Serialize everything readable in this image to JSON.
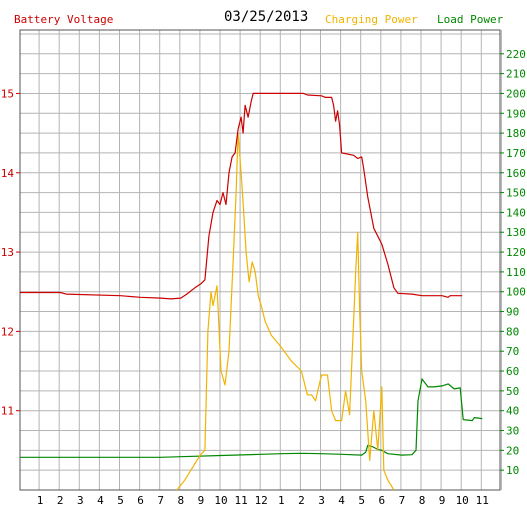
{
  "header": {
    "left_title": "Battery Voltage",
    "date": "03/25/2013",
    "charging_label": "Charging Power",
    "load_label": "Load Power"
  },
  "colors": {
    "voltage": "#cc0000",
    "charging": "#f0b400",
    "load": "#008800",
    "grid": "#b4b4b4",
    "frame": "#555555"
  },
  "chart_data": {
    "type": "line",
    "title": "03/25/2013",
    "grid": true,
    "x_range": [
      0,
      23
    ],
    "x_ticks": [
      {
        "label": "1",
        "x": 1
      },
      {
        "label": "2",
        "x": 2
      },
      {
        "label": "3",
        "x": 3
      },
      {
        "label": "4",
        "x": 4
      },
      {
        "label": "5",
        "x": 5
      },
      {
        "label": "6",
        "x": 6
      },
      {
        "label": "7",
        "x": 7
      },
      {
        "label": "8",
        "x": 8
      },
      {
        "label": "9",
        "x": 9
      },
      {
        "label": "10",
        "x": 10
      },
      {
        "label": "11",
        "x": 11
      },
      {
        "label": "12",
        "x": 12
      },
      {
        "label": "1",
        "x": 13
      },
      {
        "label": "2",
        "x": 14
      },
      {
        "label": "3",
        "x": 15
      },
      {
        "label": "4",
        "x": 16
      },
      {
        "label": "5",
        "x": 17
      },
      {
        "label": "6",
        "x": 18
      },
      {
        "label": "7",
        "x": 19
      },
      {
        "label": "8",
        "x": 20
      },
      {
        "label": "9",
        "x": 21
      },
      {
        "label": "10",
        "x": 22
      },
      {
        "label": "11",
        "x": 23
      }
    ],
    "y_left": {
      "label": "Battery Voltage",
      "range": [
        10,
        15.8
      ],
      "ticks": [
        11,
        12,
        13,
        14,
        15
      ]
    },
    "y_right": {
      "label": "Power",
      "range": [
        0,
        232
      ],
      "ticks": [
        10,
        20,
        30,
        40,
        50,
        60,
        70,
        80,
        90,
        100,
        110,
        120,
        130,
        140,
        150,
        160,
        170,
        180,
        190,
        200,
        210,
        220
      ]
    },
    "series": [
      {
        "name": "Battery Voltage",
        "axis": "left",
        "points": [
          [
            0,
            12.49
          ],
          [
            2.0,
            12.49
          ],
          [
            2.3,
            12.47
          ],
          [
            5.0,
            12.45
          ],
          [
            6.0,
            12.43
          ],
          [
            7.0,
            12.42
          ],
          [
            7.5,
            12.41
          ],
          [
            8.0,
            12.42
          ],
          [
            8.3,
            12.47
          ],
          [
            8.7,
            12.55
          ],
          [
            9.0,
            12.6
          ],
          [
            9.2,
            12.65
          ],
          [
            9.4,
            13.2
          ],
          [
            9.6,
            13.5
          ],
          [
            9.8,
            13.65
          ],
          [
            9.95,
            13.6
          ],
          [
            10.1,
            13.75
          ],
          [
            10.25,
            13.6
          ],
          [
            10.4,
            14.0
          ],
          [
            10.55,
            14.2
          ],
          [
            10.7,
            14.25
          ],
          [
            10.85,
            14.55
          ],
          [
            11.0,
            14.7
          ],
          [
            11.1,
            14.5
          ],
          [
            11.2,
            14.85
          ],
          [
            11.35,
            14.7
          ],
          [
            11.5,
            14.9
          ],
          [
            11.6,
            15.0
          ],
          [
            12.5,
            15.0
          ],
          [
            14.1,
            15.0
          ],
          [
            14.3,
            14.98
          ],
          [
            15.0,
            14.97
          ],
          [
            15.2,
            14.95
          ],
          [
            15.5,
            14.95
          ],
          [
            15.6,
            14.85
          ],
          [
            15.7,
            14.65
          ],
          [
            15.8,
            14.78
          ],
          [
            15.9,
            14.6
          ],
          [
            16.0,
            14.25
          ],
          [
            16.6,
            14.22
          ],
          [
            16.8,
            14.18
          ],
          [
            17.0,
            14.2
          ],
          [
            17.1,
            14.05
          ],
          [
            17.3,
            13.7
          ],
          [
            17.6,
            13.3
          ],
          [
            18.0,
            13.1
          ],
          [
            18.3,
            12.85
          ],
          [
            18.6,
            12.55
          ],
          [
            18.8,
            12.48
          ],
          [
            19.5,
            12.47
          ],
          [
            20.0,
            12.45
          ],
          [
            21.0,
            12.45
          ],
          [
            21.3,
            12.43
          ],
          [
            21.4,
            12.45
          ],
          [
            22.0,
            12.45
          ]
        ]
      },
      {
        "name": "Charging Power",
        "axis": "right",
        "points": [
          [
            7.8,
            0
          ],
          [
            8.2,
            5
          ],
          [
            8.5,
            10
          ],
          [
            8.8,
            15
          ],
          [
            9.0,
            18
          ],
          [
            9.2,
            20
          ],
          [
            9.35,
            80
          ],
          [
            9.5,
            100
          ],
          [
            9.6,
            93
          ],
          [
            9.8,
            103
          ],
          [
            10.0,
            60
          ],
          [
            10.2,
            53
          ],
          [
            10.4,
            70
          ],
          [
            10.6,
            115
          ],
          [
            10.75,
            150
          ],
          [
            10.85,
            180
          ],
          [
            11.0,
            160
          ],
          [
            11.1,
            145
          ],
          [
            11.25,
            120
          ],
          [
            11.4,
            105
          ],
          [
            11.55,
            115
          ],
          [
            11.7,
            110
          ],
          [
            11.85,
            98
          ],
          [
            12.0,
            93
          ],
          [
            12.2,
            85
          ],
          [
            12.5,
            78
          ],
          [
            13.0,
            72
          ],
          [
            13.5,
            65
          ],
          [
            14.0,
            60
          ],
          [
            14.3,
            48
          ],
          [
            14.5,
            48
          ],
          [
            14.7,
            45
          ],
          [
            15.0,
            58
          ],
          [
            15.3,
            58
          ],
          [
            15.5,
            40
          ],
          [
            15.7,
            35
          ],
          [
            16.0,
            35
          ],
          [
            16.2,
            50
          ],
          [
            16.4,
            38
          ],
          [
            16.7,
            110
          ],
          [
            16.8,
            130
          ],
          [
            16.9,
            90
          ],
          [
            17.0,
            60
          ],
          [
            17.2,
            45
          ],
          [
            17.4,
            15
          ],
          [
            17.6,
            40
          ],
          [
            17.8,
            20
          ],
          [
            18.0,
            52
          ],
          [
            18.1,
            10
          ],
          [
            18.3,
            5
          ],
          [
            18.6,
            0
          ]
        ]
      },
      {
        "name": "Load Power",
        "axis": "right",
        "points": [
          [
            0,
            16.5
          ],
          [
            4.0,
            16.5
          ],
          [
            7.0,
            16.5
          ],
          [
            8.0,
            16.8
          ],
          [
            10.0,
            17.4
          ],
          [
            12.0,
            18.0
          ],
          [
            13.0,
            18.3
          ],
          [
            14.0,
            18.5
          ],
          [
            15.0,
            18.3
          ],
          [
            16.0,
            18.0
          ],
          [
            17.0,
            17.6
          ],
          [
            17.2,
            19
          ],
          [
            17.3,
            22.5
          ],
          [
            17.5,
            22.0
          ],
          [
            17.8,
            20.5
          ],
          [
            18.0,
            20.0
          ],
          [
            18.3,
            18.3
          ],
          [
            19.0,
            17.6
          ],
          [
            19.5,
            17.8
          ],
          [
            19.7,
            20
          ],
          [
            19.8,
            45
          ],
          [
            20.0,
            56
          ],
          [
            20.3,
            52
          ],
          [
            20.6,
            52
          ],
          [
            21.0,
            52.5
          ],
          [
            21.3,
            53.5
          ],
          [
            21.6,
            51
          ],
          [
            21.9,
            51.5
          ],
          [
            22.05,
            35.5
          ],
          [
            22.5,
            35.0
          ],
          [
            22.6,
            36.5
          ],
          [
            23.0,
            36.0
          ]
        ]
      }
    ]
  }
}
